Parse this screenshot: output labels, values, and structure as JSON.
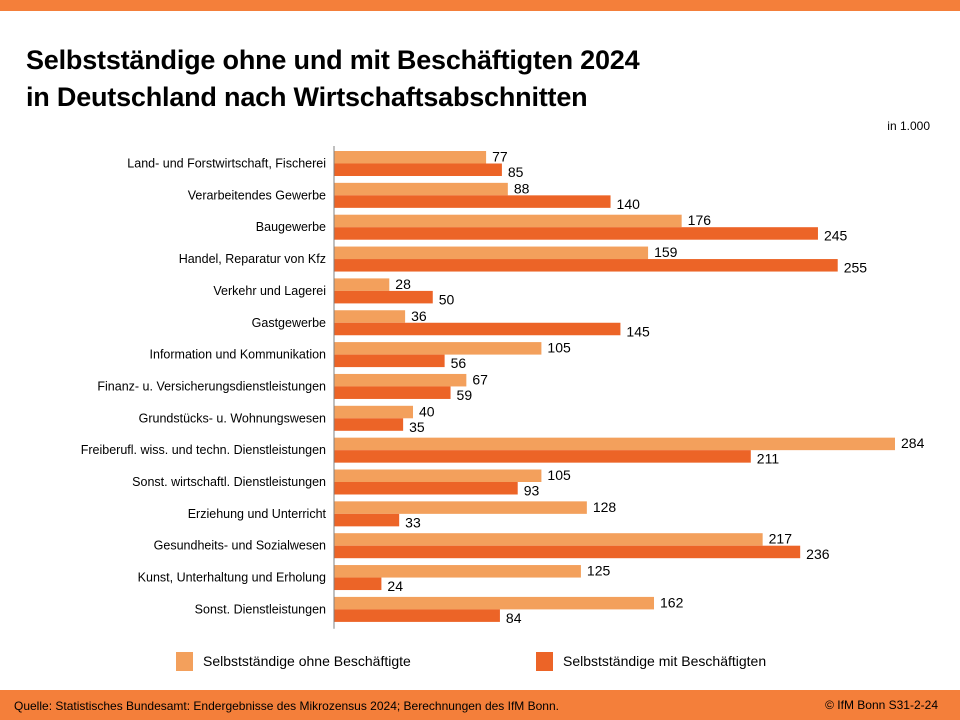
{
  "header": {
    "title_line1": "Selbstständige ohne und mit Beschäftigten 2024",
    "title_line2": "in Deutschland nach Wirtschaftsabschnitten",
    "unit_note": "in 1.000"
  },
  "colors": {
    "accent_bar": "#f47f3a",
    "series_ohne": "#f3a05c",
    "series_mit": "#ec6427",
    "axis": "#808080"
  },
  "chart_data": {
    "type": "bar",
    "orientation": "horizontal",
    "title": "Selbstständige ohne und mit Beschäftigten 2024 in Deutschland nach Wirtschaftsabschnitten",
    "unit": "in 1.000",
    "xlabel": "",
    "ylabel": "",
    "xlim": [
      0,
      284
    ],
    "grid": false,
    "legend_position": "bottom",
    "categories": [
      "Land- und Forstwirtschaft, Fischerei",
      "Verarbeitendes Gewerbe",
      "Baugewerbe",
      "Handel, Reparatur von Kfz",
      "Verkehr und Lagerei",
      "Gastgewerbe",
      "Information und Kommunikation",
      "Finanz- u. Versicherungsdienstleistungen",
      "Grundstücks- u. Wohnungswesen",
      "Freiberufl. wiss. und techn. Dienstleistungen",
      "Sonst. wirtschaftl. Dienstleistungen",
      "Erziehung und Unterricht",
      "Gesundheits- und Sozialwesen",
      "Kunst, Unterhaltung und Erholung",
      "Sonst. Dienstleistungen"
    ],
    "series": [
      {
        "name": "Selbstständige ohne Beschäftigte",
        "color": "#f3a05c",
        "values": [
          77,
          88,
          176,
          159,
          28,
          36,
          105,
          67,
          40,
          284,
          105,
          128,
          217,
          125,
          162
        ]
      },
      {
        "name": "Selbstständige mit Beschäftigten",
        "color": "#ec6427",
        "values": [
          85,
          140,
          245,
          255,
          50,
          145,
          56,
          59,
          35,
          211,
          93,
          33,
          236,
          24,
          84
        ]
      }
    ]
  },
  "legend": {
    "item1": "Selbstständige ohne Beschäftigte",
    "item2": "Selbstständige mit Beschäftigten"
  },
  "footer": {
    "source": "Quelle: Statistisches Bundesamt: Endergebnisse des Mikrozensus 2024; Berechnungen des IfM Bonn.",
    "copyright": "© IfM Bonn  S31-2-24"
  }
}
